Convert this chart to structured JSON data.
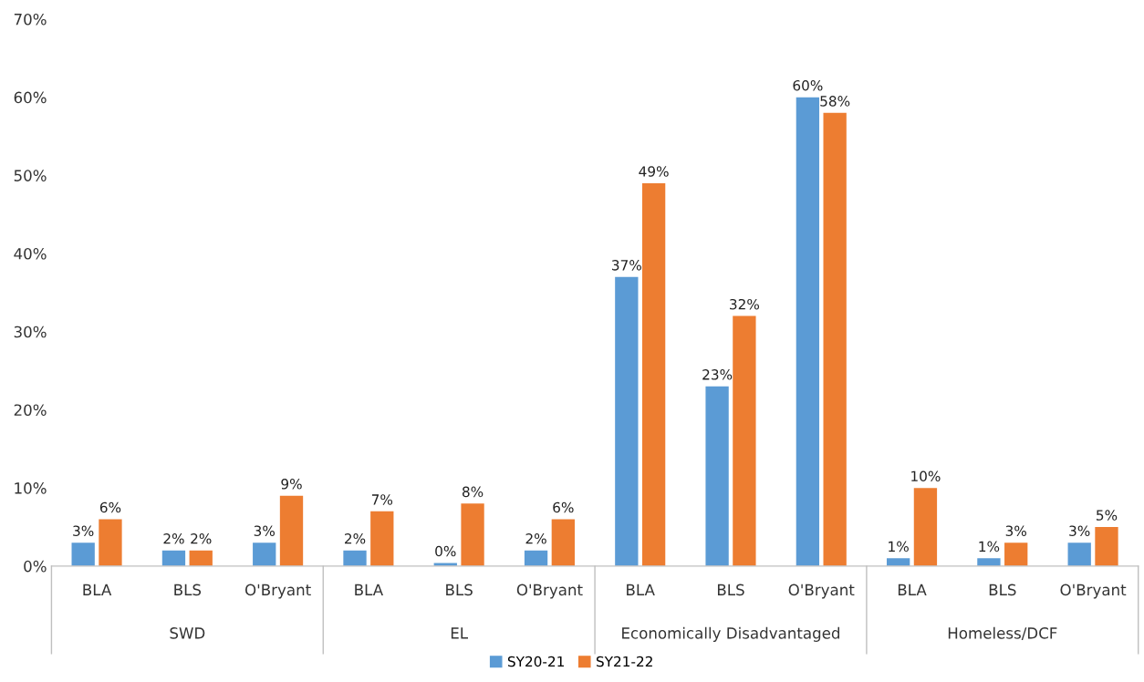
{
  "chart_data": {
    "type": "bar",
    "categories": [
      "BLA",
      "BLS",
      "O'Bryant",
      "BLA",
      "BLS",
      "O'Bryant",
      "BLA",
      "BLS",
      "O'Bryant",
      "BLA",
      "BLS",
      "O'Bryant"
    ],
    "annotations": [
      "SWD",
      "EL",
      "Economically Disadvantaged",
      "Homeless/DCF"
    ],
    "series": [
      {
        "name": "SY20-21",
        "color": "#5b9bd5",
        "values": [
          3,
          2,
          3,
          2,
          0.4,
          2,
          37,
          23,
          60,
          1,
          1,
          3
        ],
        "value_labels": [
          "3%",
          "2%",
          "3%",
          "2%",
          "0%",
          "2%",
          "37%",
          "23%",
          "60%",
          "1%",
          "1%",
          "3%"
        ]
      },
      {
        "name": "SY21-22",
        "color": "#ed7d31",
        "values": [
          6,
          2,
          9,
          7,
          8,
          6,
          49,
          32,
          58,
          10,
          3,
          5
        ],
        "value_labels": [
          "6%",
          "2%",
          "9%",
          "7%",
          "8%",
          "6%",
          "49%",
          "32%",
          "58%",
          "10%",
          "3%",
          "5%"
        ]
      }
    ],
    "ylim": [
      0,
      70
    ],
    "yticks": [
      {
        "value": 0,
        "label": "0%"
      },
      {
        "value": 10,
        "label": "10%"
      },
      {
        "value": 20,
        "label": "20%"
      },
      {
        "value": 30,
        "label": "30%"
      },
      {
        "value": 40,
        "label": "40%"
      },
      {
        "value": 50,
        "label": "50%"
      },
      {
        "value": 60,
        "label": "60%"
      },
      {
        "value": 70,
        "label": "70%"
      }
    ],
    "grid": false,
    "legend": "bottom"
  }
}
